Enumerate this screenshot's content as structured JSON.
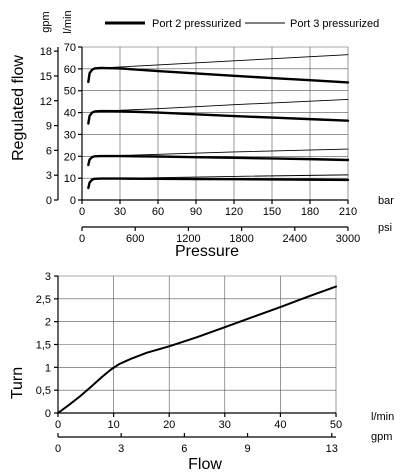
{
  "chart_data": [
    {
      "type": "line",
      "xlabel": "Pressure",
      "ylabel": "Regulated flow",
      "x_unit": "bar",
      "x2_unit": "psi",
      "y_unit": "l/min",
      "y2_unit": "gpm",
      "x_ticks": [
        "0",
        "30",
        "60",
        "90",
        "120",
        "150",
        "180",
        "210"
      ],
      "x2_ticks": [
        "0",
        "600",
        "1200",
        "1800",
        "2400",
        "3000"
      ],
      "y_ticks": [
        "0",
        "10",
        "20",
        "30",
        "40",
        "50",
        "60",
        "70"
      ],
      "y2_ticks": [
        "0",
        "3",
        "6",
        "9",
        "12",
        "15",
        "18"
      ],
      "xlim": [
        0,
        210
      ],
      "ylim": [
        0,
        70
      ],
      "x2lim": [
        0,
        3000
      ],
      "y2lim": [
        0,
        18.5
      ],
      "grid": true,
      "legend_position": "top",
      "series": [
        {
          "name": "Port 2 pressurized",
          "style": "thick",
          "group": 10,
          "x": [
            5,
            6,
            8,
            10,
            15,
            30,
            60,
            90,
            120,
            150,
            180,
            210
          ],
          "y": [
            5.5,
            8,
            9.3,
            9.7,
            9.8,
            9.8,
            9.7,
            9.6,
            9.5,
            9.4,
            9.3,
            9.2
          ]
        },
        {
          "name": "Port 3 pressurized",
          "style": "thin",
          "group": 10,
          "x": [
            15,
            60,
            120,
            210
          ],
          "y": [
            9.8,
            10.2,
            10.8,
            11.5
          ]
        },
        {
          "name": "Port 2 pressurized",
          "style": "thick",
          "group": 20,
          "x": [
            5,
            6,
            8,
            10,
            15,
            30,
            60,
            90,
            120,
            150,
            180,
            210
          ],
          "y": [
            16,
            18.5,
            19.6,
            20,
            20.1,
            20.1,
            19.9,
            19.6,
            19.3,
            19.0,
            18.7,
            18.3
          ]
        },
        {
          "name": "Port 3 pressurized",
          "style": "thin",
          "group": 20,
          "x": [
            15,
            60,
            120,
            210
          ],
          "y": [
            20.1,
            20.9,
            22.0,
            23.3
          ]
        },
        {
          "name": "Port 2 pressurized",
          "style": "thick",
          "group": 40,
          "x": [
            5,
            6,
            8,
            10,
            15,
            30,
            60,
            90,
            120,
            150,
            180,
            210
          ],
          "y": [
            35,
            38.5,
            40,
            40.5,
            40.7,
            40.6,
            40.0,
            39.2,
            38.4,
            37.7,
            37.0,
            36.3
          ]
        },
        {
          "name": "Port 3 pressurized",
          "style": "thin",
          "group": 40,
          "x": [
            15,
            60,
            120,
            210
          ],
          "y": [
            40.7,
            41.8,
            43.6,
            46.0
          ]
        },
        {
          "name": "Port 2 pressurized",
          "style": "thick",
          "group": 60,
          "x": [
            5,
            6,
            8,
            10,
            15,
            30,
            60,
            90,
            120,
            150,
            180,
            210
          ],
          "y": [
            54,
            58,
            59.6,
            60.2,
            60.4,
            60.2,
            59.0,
            57.9,
            56.8,
            55.8,
            54.8,
            53.8
          ]
        },
        {
          "name": "Port 3 pressurized",
          "style": "thin",
          "group": 60,
          "x": [
            15,
            60,
            120,
            210
          ],
          "y": [
            60.4,
            61.8,
            63.7,
            66.5
          ]
        }
      ]
    },
    {
      "type": "line",
      "xlabel": "Flow",
      "ylabel": "Turn",
      "x_unit": "l/min",
      "x2_unit": "gpm",
      "x_ticks": [
        "0",
        "10",
        "20",
        "30",
        "40",
        "50"
      ],
      "x2_ticks": [
        "0",
        "3",
        "6",
        "9",
        "13"
      ],
      "y_ticks": [
        "0",
        "0,5",
        "1",
        "1,5",
        "2",
        "2,5",
        "3"
      ],
      "xlim": [
        0,
        50
      ],
      "ylim": [
        0,
        3
      ],
      "x2lim": [
        0,
        13.2
      ],
      "grid": true,
      "series": [
        {
          "x": [
            0,
            2,
            4,
            6,
            8,
            9.5,
            11,
            13,
            16,
            20,
            25,
            30,
            35,
            40,
            45,
            50
          ],
          "y": [
            0,
            0.18,
            0.37,
            0.58,
            0.8,
            0.95,
            1.07,
            1.18,
            1.32,
            1.46,
            1.66,
            1.88,
            2.1,
            2.32,
            2.55,
            2.77
          ]
        }
      ]
    }
  ],
  "legend": {
    "port2_label": "Port 2 pressurized",
    "port3_label": "Port 3 pressurized"
  },
  "top_chart": {
    "ylabel": "Regulated flow",
    "xlabel": "Pressure",
    "y_unit": "l/min",
    "y2_unit": "gpm",
    "x_unit": "bar",
    "x2_unit": "psi"
  },
  "bottom_chart": {
    "ylabel": "Turn",
    "xlabel": "Flow",
    "x_unit": "l/min",
    "x2_unit": "gpm"
  }
}
